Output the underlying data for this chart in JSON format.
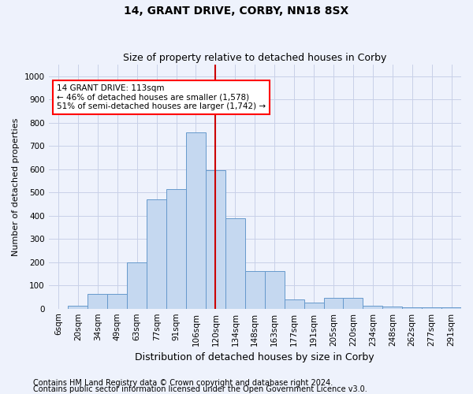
{
  "title": "14, GRANT DRIVE, CORBY, NN18 8SX",
  "subtitle": "Size of property relative to detached houses in Corby",
  "xlabel": "Distribution of detached houses by size in Corby",
  "ylabel": "Number of detached properties",
  "categories": [
    "6sqm",
    "20sqm",
    "34sqm",
    "49sqm",
    "63sqm",
    "77sqm",
    "91sqm",
    "106sqm",
    "120sqm",
    "134sqm",
    "148sqm",
    "163sqm",
    "177sqm",
    "191sqm",
    "205sqm",
    "220sqm",
    "234sqm",
    "248sqm",
    "262sqm",
    "277sqm",
    "291sqm"
  ],
  "values": [
    0,
    13,
    65,
    65,
    200,
    470,
    515,
    760,
    595,
    390,
    160,
    160,
    40,
    27,
    45,
    45,
    12,
    8,
    6,
    5,
    5
  ],
  "bar_color": "#c5d8f0",
  "bar_edge_color": "#6699cc",
  "vline_x_index": 8,
  "vline_color": "#cc0000",
  "annotation_text": "14 GRANT DRIVE: 113sqm\n← 46% of detached houses are smaller (1,578)\n51% of semi-detached houses are larger (1,742) →",
  "annotation_box_facecolor": "white",
  "annotation_box_edgecolor": "red",
  "ylim": [
    0,
    1050
  ],
  "yticks": [
    0,
    100,
    200,
    300,
    400,
    500,
    600,
    700,
    800,
    900,
    1000
  ],
  "bg_color": "#eef2fc",
  "grid_color": "#c8d0e8",
  "footer_line1": "Contains HM Land Registry data © Crown copyright and database right 2024.",
  "footer_line2": "Contains public sector information licensed under the Open Government Licence v3.0.",
  "title_fontsize": 10,
  "subtitle_fontsize": 9,
  "ylabel_fontsize": 8,
  "xlabel_fontsize": 9,
  "tick_fontsize": 7.5,
  "annotation_fontsize": 7.5,
  "footer_fontsize": 7
}
